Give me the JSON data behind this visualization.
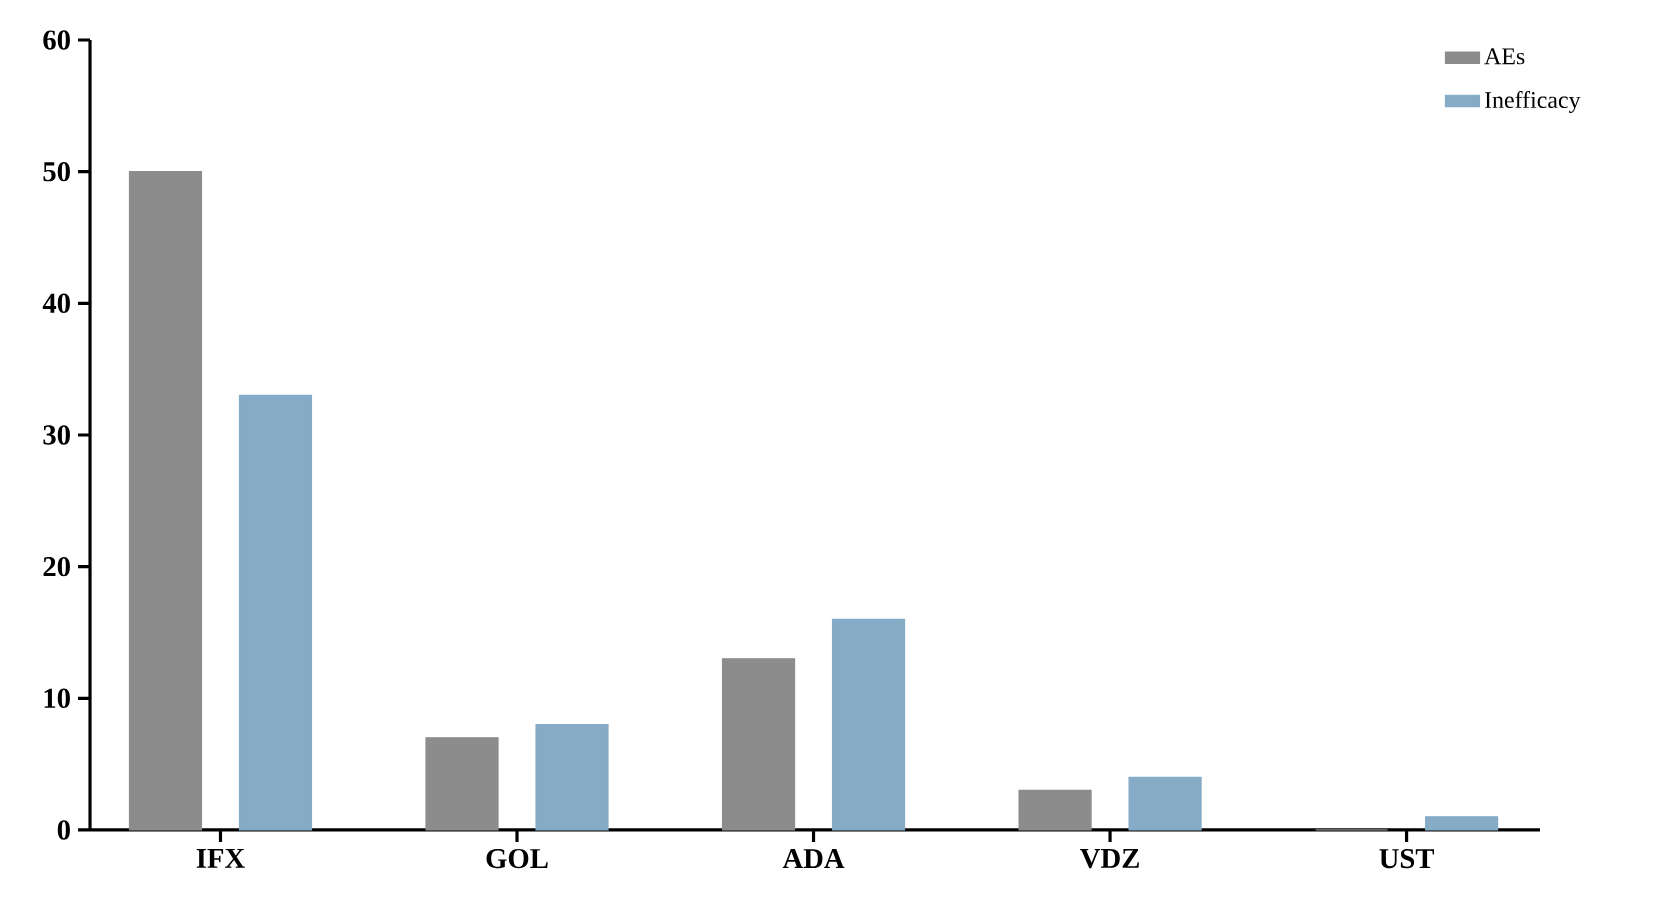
{
  "chart_data": {
    "type": "bar",
    "categories": [
      "IFX",
      "GOL",
      "ADA",
      "VDZ",
      "UST"
    ],
    "series": [
      {
        "name": "AEs",
        "color": "#8c8c8c",
        "values": [
          50,
          7,
          13,
          3,
          0
        ]
      },
      {
        "name": "Inefficacy",
        "color": "#85abc6",
        "values": [
          33,
          8,
          16,
          4,
          1
        ]
      }
    ],
    "ylim": [
      0,
      60
    ],
    "yticks": [
      0,
      10,
      20,
      30,
      40,
      50,
      60
    ],
    "legend": "top right"
  }
}
